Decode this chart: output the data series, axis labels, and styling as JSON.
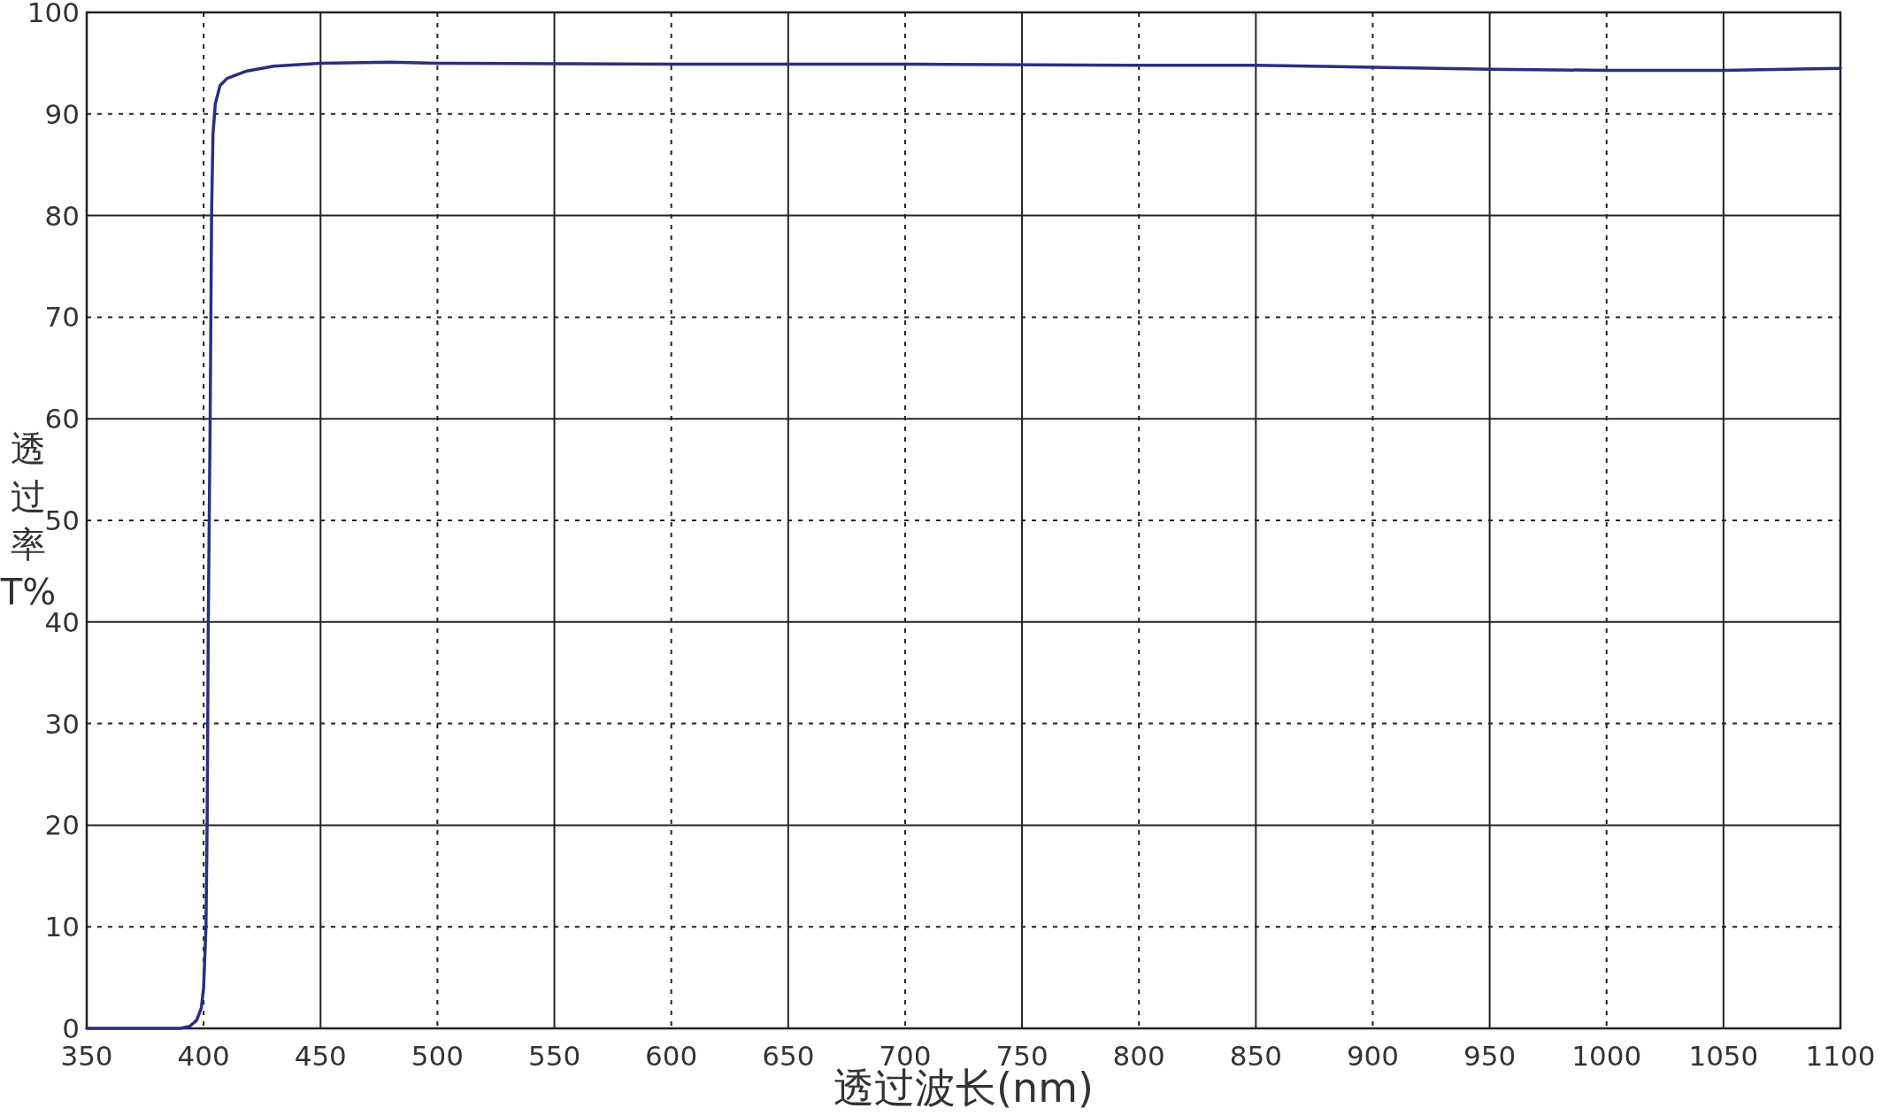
{
  "chart_data": {
    "type": "line",
    "xlabel": "透过波长(nm)",
    "ylabel": "透过率T%",
    "x": [
      350,
      390,
      394,
      397,
      399,
      400,
      401,
      401.5,
      402,
      402.8,
      403.4,
      404,
      405,
      407,
      410,
      418,
      430,
      450,
      480,
      500,
      600,
      700,
      800,
      850,
      900,
      950,
      1000,
      1050,
      1100
    ],
    "series": [
      {
        "color": "#2b2f80",
        "values": [
          0,
          0,
          0.2,
          0.8,
          2,
          4,
          10,
          20,
          40,
          60,
          80,
          88,
          91,
          92.8,
          93.5,
          94.2,
          94.7,
          95,
          95.1,
          95,
          94.9,
          94.9,
          94.8,
          94.8,
          94.6,
          94.4,
          94.3,
          94.3,
          94.5
        ]
      }
    ],
    "xlim": [
      350,
      1100
    ],
    "ylim": [
      0,
      100
    ],
    "xticks": [
      350,
      400,
      450,
      500,
      550,
      600,
      650,
      700,
      750,
      800,
      850,
      900,
      950,
      1000,
      1050,
      1100
    ],
    "yticks": [
      0,
      10,
      20,
      30,
      40,
      50,
      60,
      70,
      80,
      90,
      100
    ],
    "grid": true,
    "line_style": "solid",
    "marker": "none"
  }
}
